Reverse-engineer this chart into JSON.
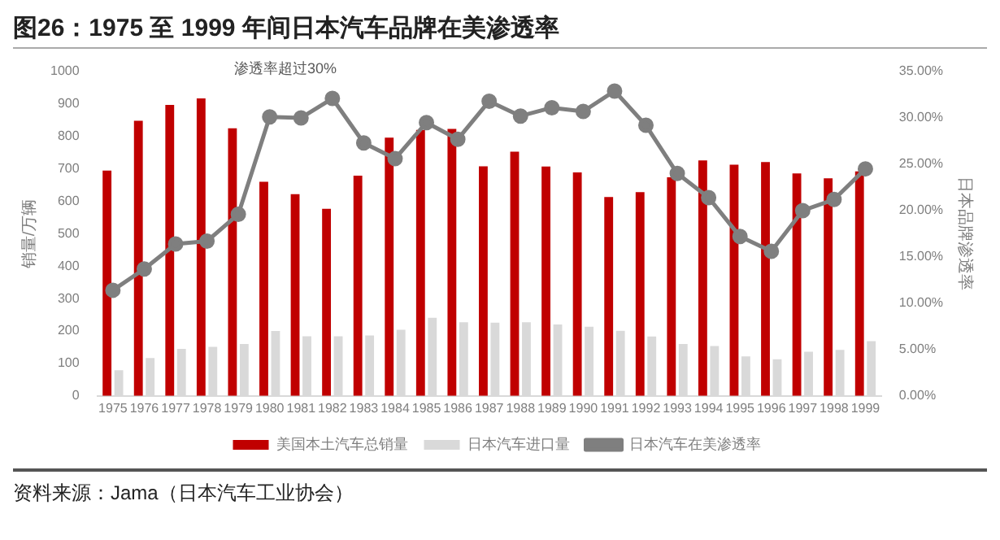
{
  "chart_data": {
    "type": "bar",
    "title": "图26：1975 至 1999 年间日本汽车品牌在美渗透率",
    "categories": [
      "1975",
      "1976",
      "1977",
      "1978",
      "1979",
      "1980",
      "1981",
      "1982",
      "1983",
      "1984",
      "1985",
      "1986",
      "1987",
      "1988",
      "1989",
      "1990",
      "1991",
      "1992",
      "1993",
      "1994",
      "1995",
      "1996",
      "1997",
      "1998",
      "1999"
    ],
    "series": [
      {
        "name": "美国本土汽车总销量",
        "color": "#c00000",
        "values": [
          695,
          848,
          897,
          917,
          825,
          660,
          622,
          577,
          679,
          796,
          820,
          823,
          708,
          753,
          707,
          689,
          613,
          628,
          674,
          726,
          713,
          721,
          686,
          671,
          692
        ]
      },
      {
        "name": "日本汽车进口量",
        "color": "#d9d9d9",
        "values": [
          79,
          117,
          145,
          151,
          160,
          200,
          184,
          184,
          186,
          204,
          241,
          227,
          226,
          227,
          220,
          213,
          201,
          183,
          160,
          154,
          122,
          113,
          136,
          142,
          169
        ]
      },
      {
        "name": "日本汽车在美渗透率",
        "type": "line",
        "axis": "y2",
        "color": "#7f7f7f",
        "values": [
          11.4,
          13.7,
          16.4,
          16.7,
          19.6,
          30.1,
          30.0,
          32.1,
          27.3,
          25.6,
          29.5,
          27.7,
          31.8,
          30.2,
          31.1,
          30.7,
          32.9,
          29.2,
          24.0,
          21.4,
          17.2,
          15.6,
          20.0,
          21.2,
          24.5
        ]
      }
    ],
    "ylabel": "销量/万辆",
    "y2label": "日本品牌渗透率",
    "ylim": [
      0,
      1000
    ],
    "yticks": [
      0,
      100,
      200,
      300,
      400,
      500,
      600,
      700,
      800,
      900,
      1000
    ],
    "y2lim": [
      0,
      35
    ],
    "y2ticks": [
      {
        "value": 0,
        "label": "0.00%"
      },
      {
        "value": 5,
        "label": "5.00%"
      },
      {
        "value": 10,
        "label": "10.00%"
      },
      {
        "value": 15,
        "label": "15.00%"
      },
      {
        "value": 20,
        "label": "20.00%"
      },
      {
        "value": 25,
        "label": "25.00%"
      },
      {
        "value": 30,
        "label": "30.00%"
      },
      {
        "value": 35,
        "label": "35.00%"
      }
    ],
    "grid": false,
    "legend": "bottom",
    "marker": "circle",
    "line_style": "solid",
    "annotations": [
      "渗透率超过30%",
      "资料来源：Jama（日本汽车工业协会）"
    ]
  }
}
